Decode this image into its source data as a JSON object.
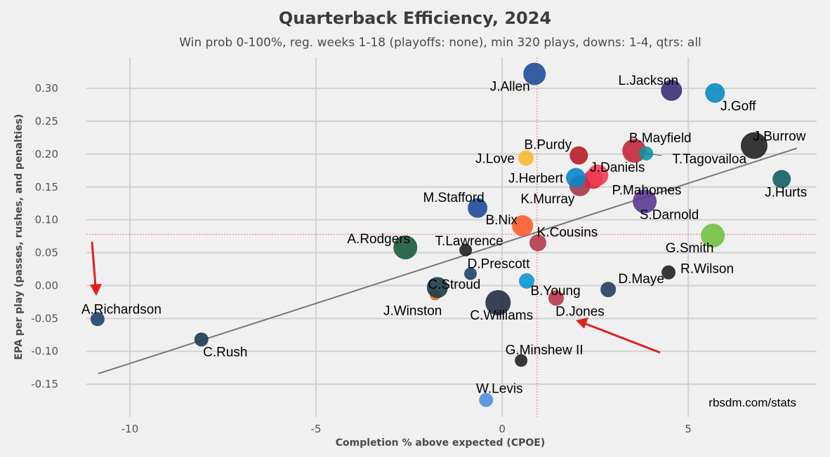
{
  "chart_data": {
    "type": "scatter",
    "title": "Quarterback Efficiency, 2024",
    "subtitle": "Win prob 0-100%, reg. weeks 1-18 (playoffs: none), min 320 plays, downs: 1-4, qtrs: all",
    "xlabel": "Completion % above expected (CPOE)",
    "ylabel": "EPA per play (passes, rushes, and penalties)",
    "xlim": [
      -11.17,
      8.45
    ],
    "ylim": [
      -0.2,
      0.347
    ],
    "xticks": [
      -10,
      -5,
      0,
      5
    ],
    "xtick_labels": [
      "-10",
      "-5",
      "0",
      "5"
    ],
    "yticks": [
      -0.15,
      -0.1,
      -0.05,
      0,
      0.05,
      0.1,
      0.15,
      0.2,
      0.25,
      0.3
    ],
    "ytick_labels": [
      "-0.15",
      "-0.10",
      "-0.05",
      "0.00",
      "0.05",
      "0.10",
      "0.15",
      "0.20",
      "0.25",
      "0.30"
    ],
    "grid": true,
    "mean_x": 0.94,
    "mean_y": 0.078,
    "trendline": {
      "x": [
        -10.85,
        7.92
      ],
      "y": [
        -0.134,
        0.209
      ]
    },
    "credit": "rbsdm.com/stats",
    "points": [
      {
        "name": "J.Allen",
        "x": 0.87,
        "y": 0.322,
        "size": 16,
        "color": "#1f4e96"
      },
      {
        "name": "L.Jackson",
        "x": 4.55,
        "y": 0.297,
        "size": 15,
        "color": "#3b2f7a"
      },
      {
        "name": "J.Goff",
        "x": 5.72,
        "y": 0.293,
        "size": 14,
        "color": "#0a8ac4"
      },
      {
        "name": "J.Burrow",
        "x": 6.77,
        "y": 0.213,
        "size": 19,
        "color": "#222222"
      },
      {
        "name": "B.Mayfield",
        "x": 3.55,
        "y": 0.205,
        "size": 17,
        "color": "#c2273a"
      },
      {
        "name": "T.Tagovailoa",
        "x": 3.87,
        "y": 0.201,
        "size": 10,
        "color": "#0d97a6"
      },
      {
        "name": "J.Hurts",
        "x": 7.51,
        "y": 0.162,
        "size": 13,
        "color": "#125f61"
      },
      {
        "name": "B.Purdy",
        "x": 2.06,
        "y": 0.198,
        "size": 13,
        "color": "#b61e24"
      },
      {
        "name": "J.Love",
        "x": 0.64,
        "y": 0.194,
        "size": 11,
        "color": "#fbb82f"
      },
      {
        "name": "K.Murray",
        "x": 2.09,
        "y": 0.152,
        "size": 15,
        "color": "#a8384a"
      },
      {
        "name": "P.Mahomes",
        "x": 2.45,
        "y": 0.162,
        "size": 14,
        "color": "#d9273a"
      },
      {
        "name": "J.Daniels",
        "x": 2.57,
        "y": 0.168,
        "size": 15,
        "color": "#ef3d57"
      },
      {
        "name": "J.Herbert",
        "x": 1.98,
        "y": 0.164,
        "size": 14,
        "color": "#0b85c9"
      },
      {
        "name": "S.Darnold",
        "x": 3.83,
        "y": 0.128,
        "size": 17,
        "color": "#5b3a94"
      },
      {
        "name": "M.Stafford",
        "x": -0.66,
        "y": 0.118,
        "size": 14,
        "color": "#1d4a9a"
      },
      {
        "name": "B.Nix",
        "x": 0.55,
        "y": 0.091,
        "size": 15,
        "color": "#fb5c2b"
      },
      {
        "name": "K.Cousins",
        "x": 0.96,
        "y": 0.065,
        "size": 12,
        "color": "#b53a4c"
      },
      {
        "name": "G.Smith",
        "x": 5.66,
        "y": 0.076,
        "size": 17,
        "color": "#74c043"
      },
      {
        "name": "A.Rodgers",
        "x": -2.6,
        "y": 0.058,
        "size": 17,
        "color": "#1a5a3e"
      },
      {
        "name": "T.Lawrence",
        "x": -0.98,
        "y": 0.054,
        "size": 9,
        "color": "#222222"
      },
      {
        "name": "D.Prescott",
        "x": -0.85,
        "y": 0.018,
        "size": 9,
        "color": "#1f4368"
      },
      {
        "name": "R.Wilson",
        "x": 4.47,
        "y": 0.02,
        "size": 10,
        "color": "#222222"
      },
      {
        "name": "B.Young",
        "x": 0.66,
        "y": 0.007,
        "size": 11,
        "color": "#0c97d6"
      },
      {
        "name": "J.Winston",
        "x": -1.8,
        "y": -0.014,
        "size": 8,
        "color": "#f06a23"
      },
      {
        "name": "C.Stroud",
        "x": -1.74,
        "y": -0.003,
        "size": 15,
        "color": "#1e3b48"
      },
      {
        "name": "D.Maye",
        "x": 2.85,
        "y": -0.006,
        "size": 11,
        "color": "#23405f"
      },
      {
        "name": "C.Williams",
        "x": -0.11,
        "y": -0.026,
        "size": 18,
        "color": "#262d42"
      },
      {
        "name": "D.Jones",
        "x": 1.45,
        "y": -0.019,
        "size": 11,
        "color": "#b53a4c"
      },
      {
        "name": "A.Richardson",
        "x": -10.87,
        "y": -0.051,
        "size": 10,
        "color": "#1f4368"
      },
      {
        "name": "C.Rush",
        "x": -8.08,
        "y": -0.082,
        "size": 10,
        "color": "#1f3a55"
      },
      {
        "name": "G.Minshew II",
        "x": 0.51,
        "y": -0.114,
        "size": 9,
        "color": "#222222"
      },
      {
        "name": "W.Levis",
        "x": -0.43,
        "y": -0.174,
        "size": 10,
        "color": "#4b92db"
      }
    ]
  }
}
